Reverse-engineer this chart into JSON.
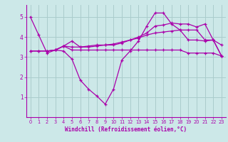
{
  "background_color": "#cce8e8",
  "grid_color": "#aacccc",
  "line_color": "#aa00aa",
  "xlim": [
    -0.5,
    23.5
  ],
  "ylim": [
    0,
    5.6
  ],
  "yticks": [
    1,
    2,
    3,
    4,
    5
  ],
  "xticks": [
    0,
    1,
    2,
    3,
    4,
    5,
    6,
    7,
    8,
    9,
    10,
    11,
    12,
    13,
    14,
    15,
    16,
    17,
    18,
    19,
    20,
    21,
    22,
    23
  ],
  "xlabel": "Windchill (Refroidissement éolien,°C)",
  "series": [
    {
      "x": [
        0,
        1,
        2,
        3,
        4,
        5,
        6,
        7,
        8,
        9,
        10,
        11,
        12,
        13,
        14,
        15,
        16,
        17,
        18,
        19,
        20,
        21,
        22,
        23
      ],
      "y": [
        5.0,
        4.1,
        3.2,
        3.35,
        3.3,
        2.9,
        1.85,
        1.4,
        1.05,
        0.65,
        1.4,
        2.85,
        3.3,
        3.8,
        4.55,
        5.2,
        5.2,
        4.65,
        4.35,
        3.85,
        3.85,
        3.8,
        3.85,
        3.05
      ]
    },
    {
      "x": [
        0,
        1,
        2,
        3,
        4,
        5,
        6,
        7,
        8,
        9,
        10,
        11,
        12,
        13,
        14,
        15,
        16,
        17,
        18,
        19,
        20,
        21,
        22,
        23
      ],
      "y": [
        3.3,
        3.3,
        3.3,
        3.35,
        3.55,
        3.35,
        3.35,
        3.35,
        3.35,
        3.35,
        3.35,
        3.35,
        3.35,
        3.35,
        3.35,
        3.35,
        3.35,
        3.35,
        3.35,
        3.2,
        3.2,
        3.2,
        3.2,
        3.05
      ]
    },
    {
      "x": [
        0,
        1,
        2,
        3,
        4,
        5,
        6,
        7,
        8,
        9,
        10,
        11,
        12,
        13,
        14,
        15,
        16,
        17,
        18,
        19,
        20,
        21,
        22,
        23
      ],
      "y": [
        3.3,
        3.3,
        3.3,
        3.35,
        3.55,
        3.5,
        3.5,
        3.55,
        3.6,
        3.6,
        3.65,
        3.75,
        3.85,
        3.95,
        4.1,
        4.2,
        4.25,
        4.3,
        4.35,
        4.35,
        4.35,
        3.85,
        3.85,
        3.05
      ]
    },
    {
      "x": [
        2,
        3,
        4,
        5,
        6,
        7,
        8,
        9,
        10,
        11,
        12,
        13,
        14,
        15,
        16,
        17,
        18,
        19,
        20,
        21,
        22,
        23
      ],
      "y": [
        3.3,
        3.35,
        3.55,
        3.8,
        3.5,
        3.5,
        3.55,
        3.6,
        3.6,
        3.7,
        3.85,
        4.0,
        4.2,
        4.55,
        4.6,
        4.7,
        4.65,
        4.65,
        4.5,
        4.65,
        3.85,
        3.6
      ]
    }
  ]
}
